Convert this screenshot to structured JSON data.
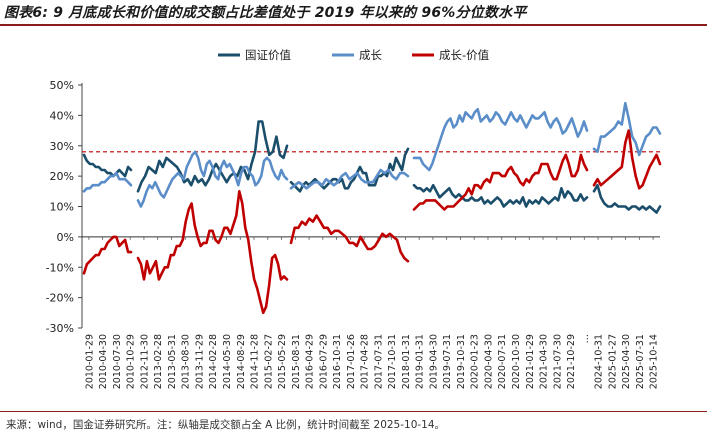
{
  "header": {
    "title": "图表6: 9 月底成长和价值的成交额占比差值处于 2019 年以来的 96%分位数水平"
  },
  "footer": {
    "source": "来源：wind，国金证券研究所。注：纵轴是成交额占全 A 比例，统计时间截至 2025-10-14。"
  },
  "colors": {
    "value": "#1b4e6b",
    "growth": "#5b8ec9",
    "diff": "#c00000",
    "refline": "#c00000"
  },
  "chart_data": {
    "type": "line",
    "xlabel": "",
    "ylabel": "",
    "ylim": [
      -30,
      50
    ],
    "yticks": [
      "-30%",
      "-20%",
      "-10%",
      "0%",
      "10%",
      "20%",
      "30%",
      "40%",
      "50%"
    ],
    "y_values": [
      -30,
      -20,
      -10,
      0,
      10,
      20,
      30,
      40,
      50
    ],
    "reference_line": 28,
    "grid": false,
    "legend_position": "top",
    "x_tick_labels": [
      "2010-01-29",
      "2010-04-30",
      "2010-07-30",
      "2010-10-29",
      "2012-11-30",
      "2013-02-28",
      "2013-05-31",
      "2013-08-30",
      "2013-11-29",
      "2014-02-28",
      "2014-05-30",
      "2014-08-29",
      "2014-11-28",
      "2015-02-27",
      "2015-05-29",
      "2015-08-31",
      "2016-04-29",
      "2016-07-29",
      "2016-10-31",
      "2017-01-26",
      "2017-04-28",
      "2017-07-31",
      "2017-10-31",
      "2018-01-31",
      "2019-01-31",
      "2019-04-30",
      "2019-07-31",
      "2019-10-31",
      "2020-01-23",
      "2020-04-30",
      "2020-07-31",
      "2020-10-30",
      "2021-01-29",
      "2021-04-30",
      "2021-07-30",
      "2021-10-29",
      "…",
      "2024-10-31",
      "2025-01-27",
      "2025-04-30",
      "2025-07-31",
      "2025-10-14"
    ],
    "series": [
      {
        "name": "国证价值",
        "segments": [
          [
            27,
            25,
            24,
            24,
            23,
            23,
            22,
            22,
            21,
            21,
            20,
            21,
            22,
            21,
            20,
            23,
            22
          ],
          [
            15,
            18,
            20,
            23,
            22,
            21,
            25,
            23,
            26,
            25,
            24,
            23,
            21,
            18,
            19,
            17,
            20,
            18,
            19,
            17,
            19,
            22,
            24,
            22,
            20,
            18,
            20,
            21,
            20,
            23,
            22,
            19,
            24,
            28,
            38,
            38,
            32,
            27,
            28,
            33,
            27,
            26,
            30
          ],
          [
            18,
            17,
            16,
            15,
            17,
            18,
            17,
            18,
            19,
            18,
            17,
            16,
            17,
            18,
            19,
            19,
            18,
            19,
            16,
            16,
            18,
            19,
            21,
            23,
            21,
            21,
            17,
            17,
            17,
            20,
            20,
            21,
            20,
            24,
            22,
            26,
            24,
            22,
            27,
            29
          ],
          [
            17,
            16,
            16,
            15,
            16,
            15,
            17,
            15,
            13,
            14,
            15,
            16,
            14,
            13,
            14,
            13,
            12,
            12,
            13,
            12,
            12,
            13,
            11,
            12,
            11,
            12,
            13,
            12,
            10,
            11,
            12,
            11,
            12,
            11,
            13,
            10,
            12,
            11,
            12,
            11,
            13,
            12,
            11,
            12,
            13,
            12,
            16,
            13,
            15,
            14,
            12,
            12,
            14,
            12,
            13
          ],
          [
            15,
            17,
            13,
            11,
            10,
            10,
            11,
            10,
            10,
            10,
            9,
            10,
            10,
            9,
            10,
            9,
            10,
            9,
            8,
            10
          ]
        ]
      },
      {
        "name": "成长",
        "segments": [
          [
            15,
            16,
            16,
            17,
            17,
            17,
            18,
            18,
            19,
            20,
            20,
            21,
            19,
            19,
            19,
            18,
            17
          ],
          [
            12,
            10,
            12,
            15,
            17,
            16,
            18,
            16,
            14,
            13,
            15,
            17,
            19,
            20,
            21,
            20,
            19,
            23,
            25,
            27,
            28,
            26,
            22,
            20,
            24,
            25,
            23,
            20,
            19,
            23,
            25,
            23,
            24,
            22,
            20,
            17,
            21,
            23,
            23,
            21,
            20,
            17,
            18,
            20,
            25,
            26,
            25,
            22,
            20,
            19,
            22,
            20,
            19
          ],
          [
            16,
            17,
            18,
            17,
            16,
            17,
            18,
            18,
            17,
            19,
            18,
            17,
            18,
            20,
            21,
            19,
            20,
            21,
            19,
            18,
            18,
            18,
            20,
            22,
            21,
            22,
            20,
            19,
            21,
            21,
            20
          ],
          [
            26,
            26,
            26,
            24,
            23,
            22,
            24,
            27,
            30,
            33,
            36,
            38,
            39,
            36,
            37,
            40,
            38,
            41,
            40,
            39,
            41,
            42,
            38,
            39,
            40,
            38,
            39,
            41,
            40,
            38,
            37,
            39,
            41,
            39,
            38,
            40,
            38,
            36,
            38,
            40,
            39,
            39,
            40,
            41,
            38,
            36,
            38,
            39,
            37,
            34,
            35,
            37,
            39,
            36,
            33,
            35,
            38,
            35
          ],
          [
            29,
            28,
            33,
            33,
            34,
            35,
            36,
            38,
            37,
            44,
            39,
            33,
            31,
            27,
            30,
            33,
            34,
            36,
            36,
            34
          ]
        ]
      },
      {
        "name": "成长-价值",
        "segments": [
          [
            -12,
            -9,
            -8,
            -7,
            -6,
            -6,
            -4,
            -4,
            -2,
            -1,
            0,
            0,
            -3,
            -2,
            -1,
            -5,
            -5
          ],
          [
            -7,
            -9,
            -14,
            -8,
            -12,
            -10,
            -8,
            -14,
            -12,
            -10,
            -10,
            -6,
            -6,
            -3,
            -3,
            -1,
            5,
            9,
            11,
            4,
            0,
            -3,
            -2,
            -2,
            2,
            2,
            -1,
            -2,
            0,
            3,
            3,
            1,
            4,
            7,
            15,
            11,
            3,
            -1,
            -8,
            -14,
            -17,
            -21,
            -25,
            -23,
            -16,
            -7,
            -6,
            -9,
            -14,
            -13,
            -14
          ],
          [
            -2,
            3,
            3,
            5,
            4,
            6,
            5,
            7,
            5,
            3,
            3,
            1,
            2,
            2,
            1,
            0,
            -2,
            -2,
            -3,
            0,
            -2,
            -4,
            -4,
            -3,
            -1,
            1,
            0,
            1,
            0,
            -1,
            -5,
            -7,
            -8
          ],
          [
            9,
            10,
            11,
            11,
            12,
            12,
            12,
            12,
            11,
            10,
            9,
            10,
            10,
            10,
            11,
            12,
            13,
            14,
            16,
            14,
            17,
            17,
            16,
            18,
            19,
            18,
            21,
            21,
            21,
            20,
            20,
            22,
            23,
            21,
            20,
            18,
            17,
            19,
            18,
            20,
            21,
            21,
            24,
            24,
            24,
            21,
            19,
            19,
            22,
            25,
            27,
            24,
            20,
            20,
            22,
            27,
            24,
            22
          ],
          [
            17,
            19,
            17,
            18,
            19,
            20,
            21,
            22,
            23,
            31,
            35,
            26,
            20,
            16,
            17,
            20,
            23,
            25,
            27,
            24
          ]
        ]
      }
    ]
  }
}
